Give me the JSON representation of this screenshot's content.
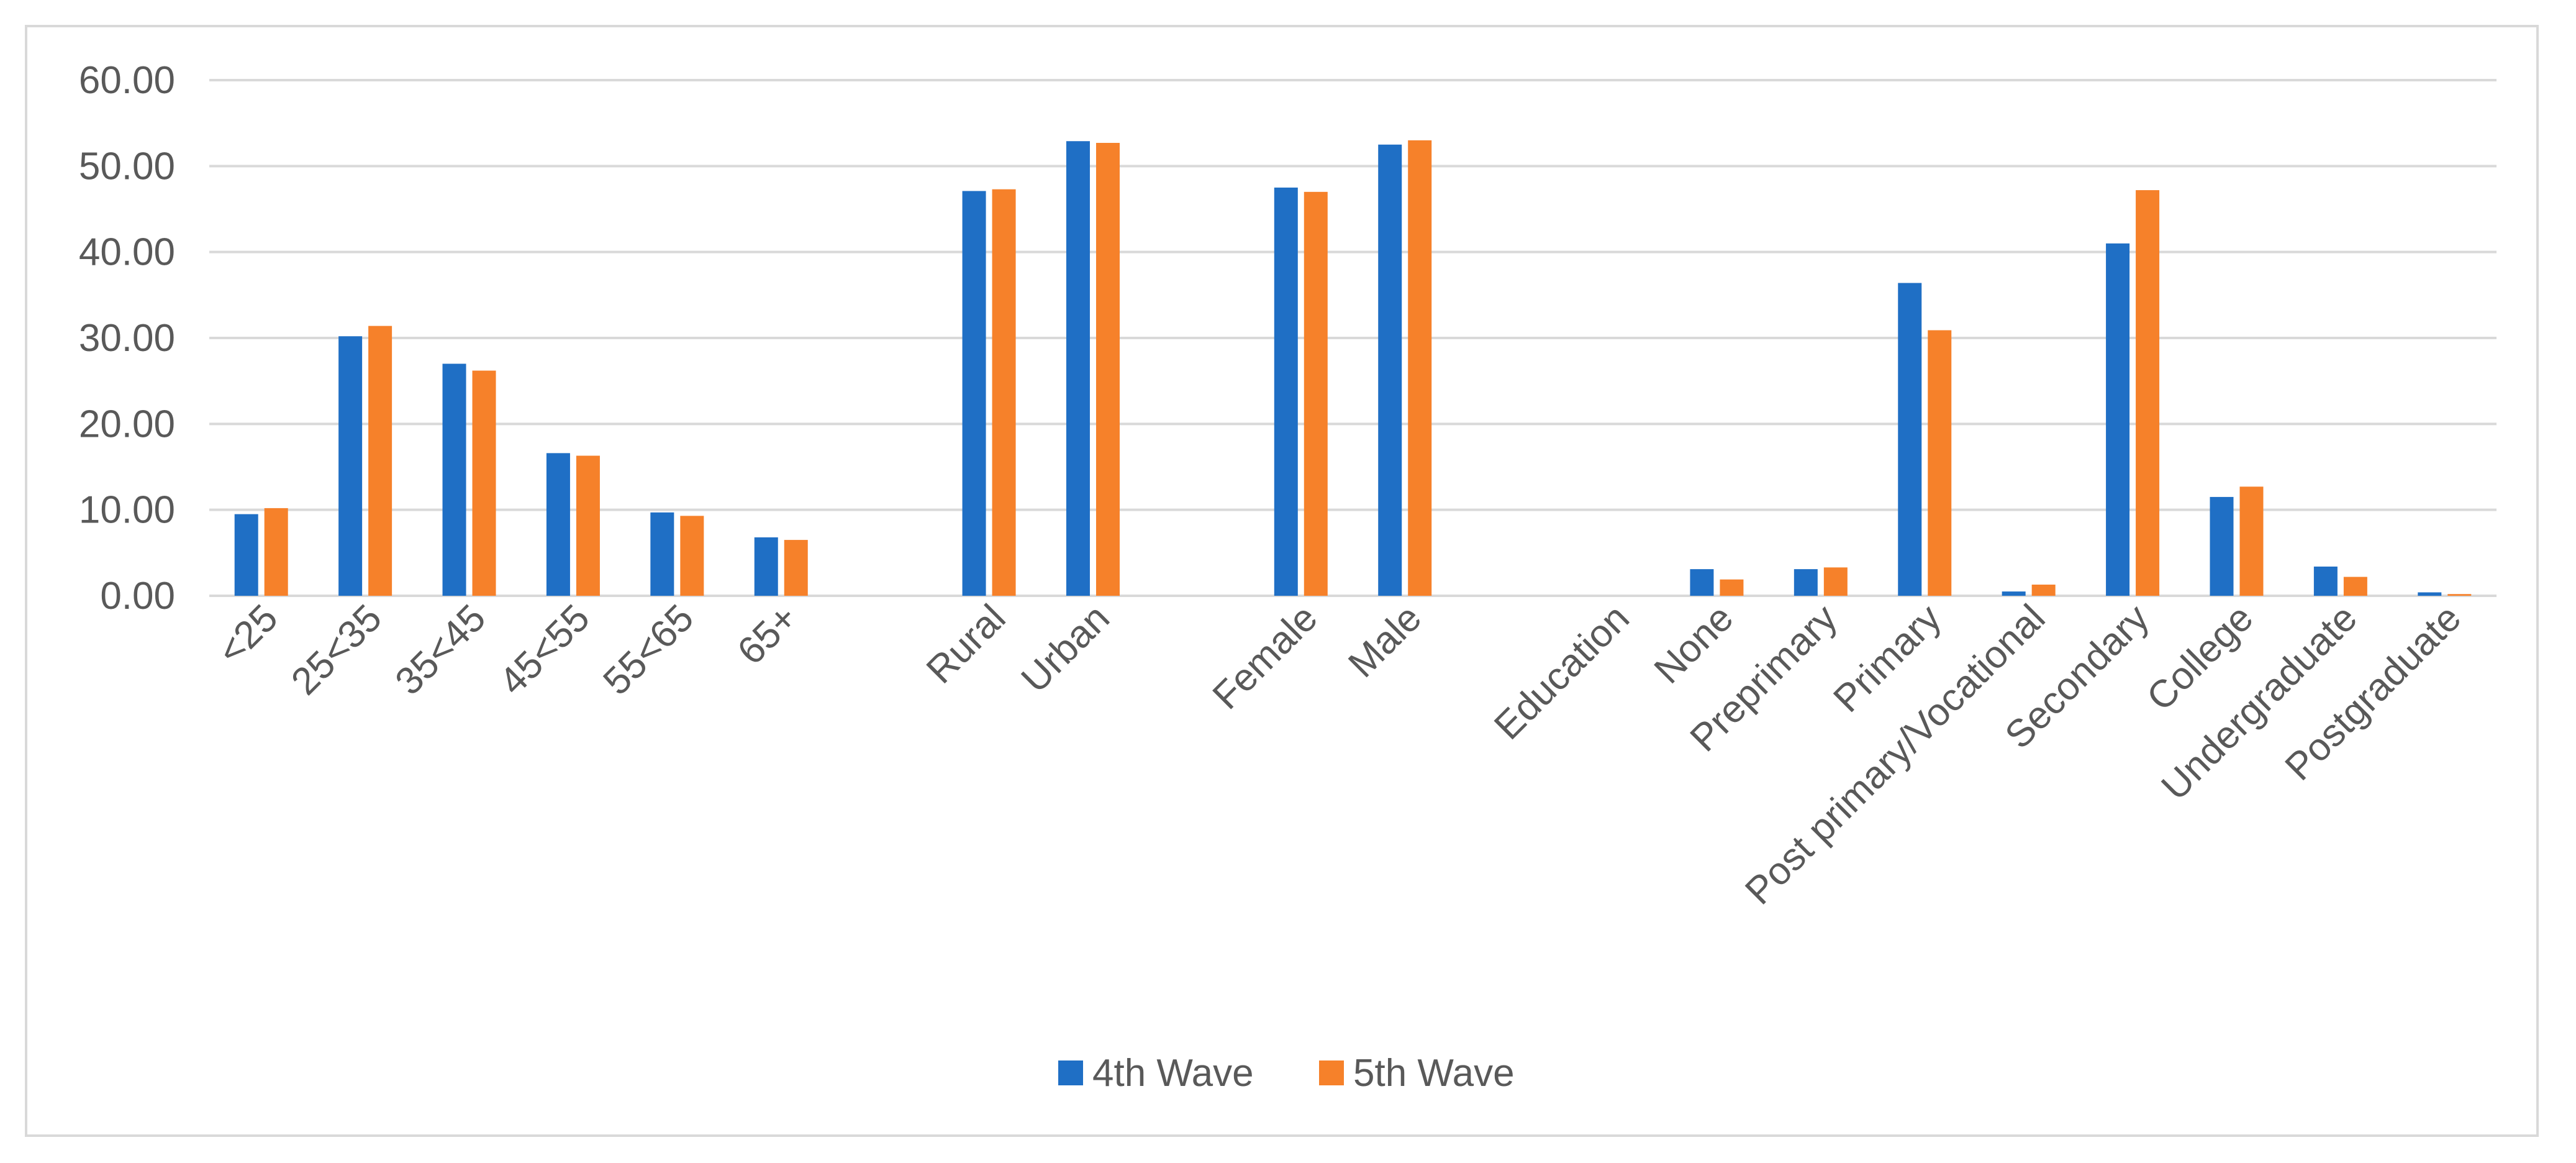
{
  "chart_data": {
    "type": "bar",
    "title": "",
    "xlabel": "",
    "ylabel": "",
    "ylim": [
      0,
      60
    ],
    "yticks": [
      "0.00",
      "10.00",
      "20.00",
      "30.00",
      "40.00",
      "50.00",
      "60.00"
    ],
    "grid": true,
    "legend_position": "bottom",
    "categories": [
      "<25",
      "25<35",
      "35<45",
      "45<55",
      "55<65",
      "65+",
      "",
      "Rural",
      "Urban",
      "",
      "Female",
      "Male",
      "",
      "Education",
      "None",
      "Preprimary",
      "Primary",
      "Post primary/Vocational",
      "Secondary",
      "College",
      "Undergraduate",
      "Postgraduate"
    ],
    "series": [
      {
        "name": "4th Wave",
        "color": "#1f6fc5",
        "values": [
          9.5,
          30.2,
          27.0,
          16.6,
          9.7,
          6.8,
          null,
          47.1,
          52.9,
          null,
          47.5,
          52.5,
          null,
          null,
          3.1,
          3.1,
          36.4,
          0.5,
          41.0,
          11.5,
          3.4,
          0.4
        ]
      },
      {
        "name": "5th Wave",
        "color": "#f6812a",
        "values": [
          10.2,
          31.4,
          26.2,
          16.3,
          9.3,
          6.5,
          null,
          47.3,
          52.7,
          null,
          47.0,
          53.0,
          null,
          null,
          1.9,
          3.3,
          30.9,
          1.3,
          47.2,
          12.7,
          2.2,
          0.2
        ]
      }
    ]
  }
}
